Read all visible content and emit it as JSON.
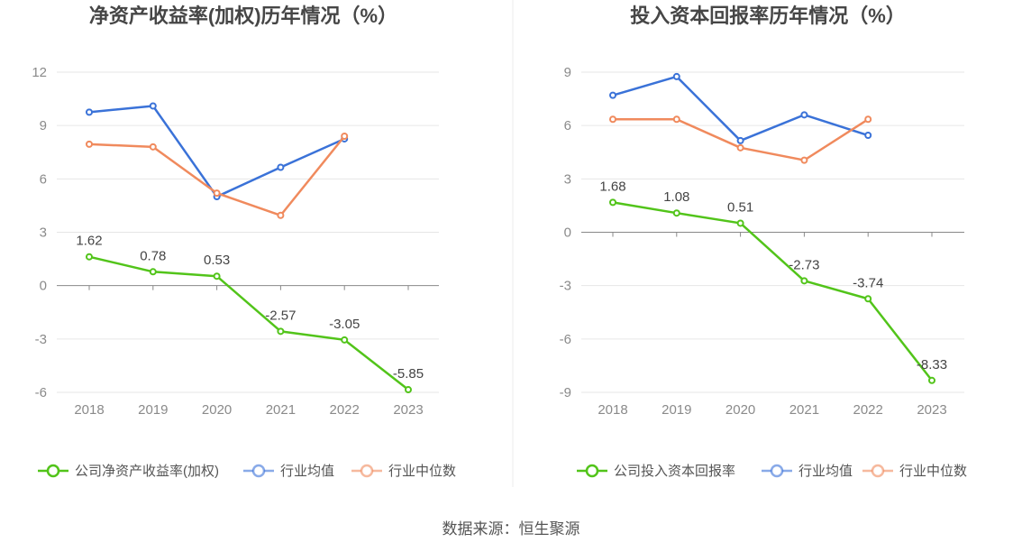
{
  "source": "数据来源：恒生聚源",
  "colors": {
    "company": "#52c41a",
    "industry_avg": "#3a72d8",
    "industry_median": "#f08a5d",
    "grid": "#e6e6e6",
    "axis": "#888888"
  },
  "chart_data": [
    {
      "type": "line",
      "title": "净资产收益率(加权)历年情况（%）",
      "categories": [
        "2018",
        "2019",
        "2020",
        "2021",
        "2022",
        "2023"
      ],
      "yticks": [
        12,
        9,
        6,
        3,
        0,
        -3,
        -6
      ],
      "ylim": [
        -6,
        12
      ],
      "series": [
        {
          "key": "company",
          "name": "公司净资产收益率(加权)",
          "values": [
            1.62,
            0.78,
            0.53,
            -2.57,
            -3.05,
            -5.85
          ],
          "labels": [
            "1.62",
            "0.78",
            "0.53",
            "-2.57",
            "-3.05",
            "-5.85"
          ]
        },
        {
          "key": "industry_avg",
          "name": "行业均值",
          "values": [
            9.75,
            10.1,
            5.0,
            6.65,
            8.25,
            null
          ]
        },
        {
          "key": "industry_median",
          "name": "行业中位数",
          "values": [
            7.95,
            7.8,
            5.2,
            3.95,
            8.4,
            null
          ]
        }
      ],
      "legend": "bottom"
    },
    {
      "type": "line",
      "title": "投入资本回报率历年情况（%）",
      "categories": [
        "2018",
        "2019",
        "2020",
        "2021",
        "2022",
        "2023"
      ],
      "yticks": [
        9,
        6,
        3,
        0,
        -3,
        -6,
        -9
      ],
      "ylim": [
        -9,
        9
      ],
      "series": [
        {
          "key": "company",
          "name": "公司投入资本回报率",
          "values": [
            1.68,
            1.08,
            0.51,
            -2.73,
            -3.74,
            -8.33
          ],
          "labels": [
            "1.68",
            "1.08",
            "0.51",
            "-2.73",
            "-3.74",
            "-8.33"
          ]
        },
        {
          "key": "industry_avg",
          "name": "行业均值",
          "values": [
            7.7,
            8.75,
            5.15,
            6.6,
            5.45,
            null
          ]
        },
        {
          "key": "industry_median",
          "name": "行业中位数",
          "values": [
            6.35,
            6.35,
            4.75,
            4.05,
            6.35,
            null
          ]
        }
      ],
      "legend": "bottom"
    }
  ]
}
